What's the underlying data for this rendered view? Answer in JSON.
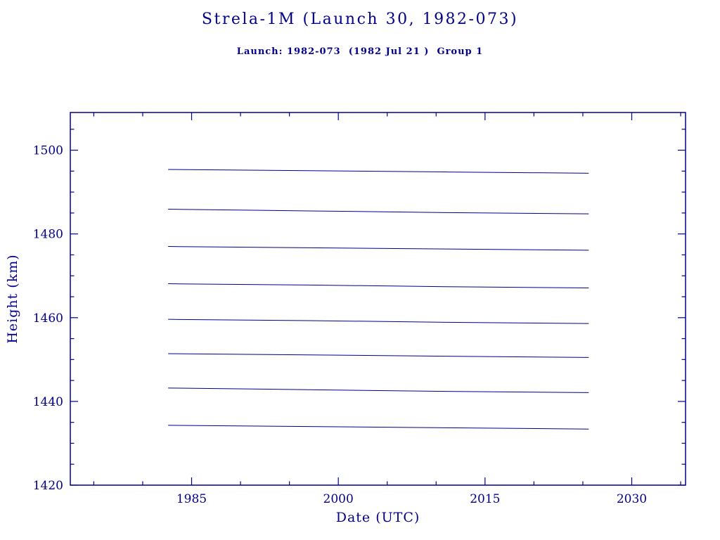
{
  "page": {
    "title": "Strela-1M (Launch 30, 1982-073)",
    "subtitle": "Launch: 1982-073  (1982 Jul 21 )  Group 1"
  },
  "colors": {
    "ink": "#00008b",
    "background": "#ffffff"
  },
  "chart_data": {
    "type": "line",
    "title": "Strela-1M (Launch 30, 1982-073)",
    "subtitle": "Launch: 1982-073  (1982 Jul 21 )  Group 1",
    "xlabel": "Date (UTC)",
    "ylabel": "Height (km)",
    "xlim": [
      1972.6,
      2035.5
    ],
    "ylim": [
      1420,
      1509
    ],
    "x_ticks": [
      1985,
      2000,
      2015,
      2030
    ],
    "y_ticks": [
      1420,
      1440,
      1460,
      1480,
      1500
    ],
    "x_minor_step": 5,
    "y_minor_step": 5,
    "grid": false,
    "legend": "none",
    "line_color": "#00008b",
    "series": [
      {
        "name": "line-1",
        "x": [
          1982.6,
          1997,
          2011,
          2025.6
        ],
        "y": [
          1495.4,
          1495.1,
          1494.8,
          1494.5
        ]
      },
      {
        "name": "line-2",
        "x": [
          1982.6,
          1997,
          2011,
          2025.6
        ],
        "y": [
          1485.9,
          1485.5,
          1485.1,
          1484.8
        ]
      },
      {
        "name": "line-3",
        "x": [
          1982.6,
          1997,
          2011,
          2025.6
        ],
        "y": [
          1477.0,
          1476.7,
          1476.4,
          1476.1
        ]
      },
      {
        "name": "line-4",
        "x": [
          1982.6,
          1997,
          2011,
          2025.6
        ],
        "y": [
          1468.1,
          1467.8,
          1467.4,
          1467.1
        ]
      },
      {
        "name": "line-5",
        "x": [
          1982.6,
          1997,
          2011,
          2025.6
        ],
        "y": [
          1459.6,
          1459.3,
          1458.9,
          1458.6
        ]
      },
      {
        "name": "line-6",
        "x": [
          1982.6,
          1997,
          2011,
          2025.6
        ],
        "y": [
          1451.4,
          1451.1,
          1450.8,
          1450.5
        ]
      },
      {
        "name": "line-7",
        "x": [
          1982.6,
          1997,
          2011,
          2025.6
        ],
        "y": [
          1443.2,
          1442.8,
          1442.4,
          1442.1
        ]
      },
      {
        "name": "line-8",
        "x": [
          1982.6,
          1997,
          2011,
          2025.6
        ],
        "y": [
          1434.3,
          1434.0,
          1433.7,
          1433.4
        ]
      }
    ]
  }
}
